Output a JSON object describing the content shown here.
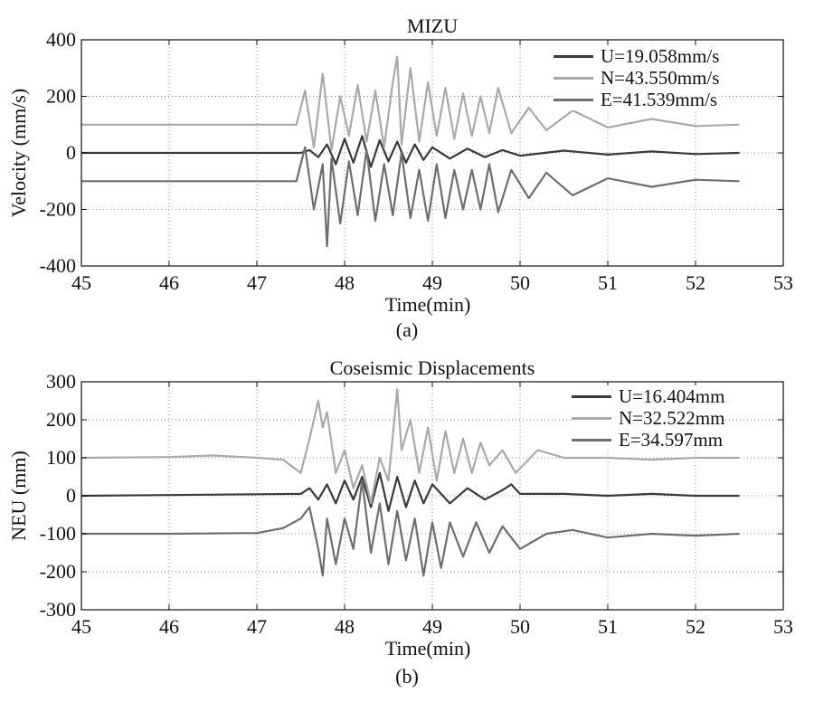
{
  "panels": [
    {
      "caption": "(a)",
      "legend": [
        {
          "label": "U=19.058mm/s",
          "color": "#3a3a3a"
        },
        {
          "label": "N=43.550mm/s",
          "color": "#a9a9a9"
        },
        {
          "label": "E=41.539mm/s",
          "color": "#6e6e6e"
        }
      ]
    },
    {
      "caption": "(b)",
      "legend": [
        {
          "label": "U=16.404mm",
          "color": "#3a3a3a"
        },
        {
          "label": "N=32.522mm",
          "color": "#a9a9a9"
        },
        {
          "label": "E=34.597mm",
          "color": "#6e6e6e"
        }
      ]
    }
  ],
  "chart_data": [
    {
      "type": "line",
      "title": "MIZU",
      "xlabel": "Time(min)",
      "ylabel": "Velocity (mm/s)",
      "xlim": [
        45,
        53
      ],
      "ylim": [
        -400,
        400
      ],
      "xticks": [
        45,
        46,
        47,
        48,
        49,
        50,
        51,
        52,
        53
      ],
      "yticks": [
        -400,
        -200,
        0,
        200,
        400
      ],
      "grid": true,
      "legend_position": "top-right",
      "series": [
        {
          "name": "U=19.058mm/s",
          "color": "#3a3a3a",
          "x": [
            45.0,
            47.5,
            47.6,
            47.7,
            47.8,
            47.9,
            48.0,
            48.1,
            48.2,
            48.3,
            48.4,
            48.5,
            48.6,
            48.7,
            48.8,
            48.9,
            49.0,
            49.2,
            49.4,
            49.6,
            49.8,
            50.0,
            50.5,
            51.0,
            51.5,
            52.0,
            52.5
          ],
          "y": [
            0,
            0,
            10,
            -15,
            30,
            -40,
            50,
            -35,
            60,
            -50,
            45,
            -30,
            40,
            -35,
            30,
            -25,
            20,
            -20,
            15,
            -15,
            10,
            -10,
            8,
            -6,
            5,
            -4,
            0
          ]
        },
        {
          "name": "N=43.550mm/s",
          "color": "#a9a9a9",
          "x": [
            45.0,
            47.45,
            47.55,
            47.65,
            47.75,
            47.85,
            47.95,
            48.05,
            48.15,
            48.25,
            48.35,
            48.45,
            48.55,
            48.6,
            48.65,
            48.75,
            48.85,
            48.95,
            49.05,
            49.15,
            49.25,
            49.35,
            49.45,
            49.55,
            49.65,
            49.75,
            49.9,
            50.1,
            50.3,
            50.6,
            51.0,
            51.5,
            52.0,
            52.5
          ],
          "y": [
            100,
            100,
            220,
            20,
            280,
            10,
            200,
            60,
            240,
            40,
            220,
            20,
            250,
            340,
            30,
            300,
            40,
            250,
            60,
            230,
            50,
            210,
            60,
            200,
            70,
            230,
            70,
            160,
            80,
            150,
            90,
            120,
            95,
            100
          ]
        },
        {
          "name": "E=41.539mm/s",
          "color": "#6e6e6e",
          "x": [
            45.0,
            47.45,
            47.55,
            47.65,
            47.75,
            47.8,
            47.85,
            47.95,
            48.05,
            48.15,
            48.25,
            48.35,
            48.45,
            48.55,
            48.65,
            48.75,
            48.85,
            48.95,
            49.05,
            49.15,
            49.25,
            49.35,
            49.45,
            49.55,
            49.65,
            49.75,
            49.9,
            50.1,
            50.3,
            50.6,
            51.0,
            51.5,
            52.0,
            52.5
          ],
          "y": [
            -100,
            -100,
            20,
            -200,
            -40,
            -330,
            -20,
            -250,
            -30,
            -220,
            10,
            -240,
            -40,
            -220,
            0,
            -230,
            -60,
            -240,
            -40,
            -230,
            -60,
            -200,
            -60,
            -200,
            -40,
            -210,
            -60,
            -160,
            -70,
            -150,
            -90,
            -120,
            -95,
            -100
          ]
        }
      ]
    },
    {
      "type": "line",
      "title": "Coseismic Displacements",
      "xlabel": "Time(min)",
      "ylabel": "NEU (mm)",
      "xlim": [
        45,
        53
      ],
      "ylim": [
        -300,
        300
      ],
      "xticks": [
        45,
        46,
        47,
        48,
        49,
        50,
        51,
        52,
        53
      ],
      "yticks": [
        -300,
        -200,
        -100,
        0,
        100,
        200,
        300
      ],
      "grid": true,
      "legend_position": "top-right",
      "series": [
        {
          "name": "U=16.404mm",
          "color": "#3a3a3a",
          "x": [
            45.0,
            46.0,
            47.0,
            47.5,
            47.6,
            47.7,
            47.8,
            47.9,
            48.0,
            48.1,
            48.2,
            48.3,
            48.4,
            48.5,
            48.6,
            48.7,
            48.8,
            48.9,
            49.0,
            49.2,
            49.4,
            49.6,
            49.8,
            49.9,
            50.0,
            50.5,
            51.0,
            51.5,
            52.0,
            52.5
          ],
          "y": [
            0,
            2,
            4,
            5,
            20,
            -10,
            30,
            -20,
            40,
            -10,
            50,
            -30,
            60,
            -40,
            50,
            -30,
            40,
            -20,
            30,
            -20,
            20,
            -10,
            15,
            30,
            5,
            5,
            0,
            5,
            0,
            0
          ]
        },
        {
          "name": "N=32.522mm",
          "color": "#a9a9a9",
          "x": [
            45.0,
            46.0,
            46.5,
            47.0,
            47.3,
            47.5,
            47.6,
            47.7,
            47.75,
            47.8,
            47.9,
            48.0,
            48.1,
            48.2,
            48.3,
            48.4,
            48.5,
            48.6,
            48.65,
            48.75,
            48.85,
            48.95,
            49.05,
            49.15,
            49.25,
            49.35,
            49.45,
            49.55,
            49.65,
            49.8,
            49.95,
            50.2,
            50.5,
            51.0,
            51.5,
            52.0,
            52.5
          ],
          "y": [
            100,
            102,
            106,
            100,
            95,
            60,
            150,
            250,
            180,
            220,
            60,
            120,
            20,
            80,
            -20,
            100,
            40,
            280,
            120,
            200,
            60,
            180,
            40,
            170,
            60,
            150,
            60,
            140,
            80,
            120,
            60,
            120,
            100,
            100,
            95,
            100,
            100
          ]
        },
        {
          "name": "E=34.597mm",
          "color": "#6e6e6e",
          "x": [
            45.0,
            46.0,
            47.0,
            47.3,
            47.5,
            47.6,
            47.7,
            47.75,
            47.8,
            47.9,
            48.0,
            48.1,
            48.2,
            48.3,
            48.4,
            48.5,
            48.6,
            48.7,
            48.8,
            48.9,
            49.0,
            49.1,
            49.2,
            49.35,
            49.5,
            49.65,
            49.8,
            50.0,
            50.3,
            50.6,
            51.0,
            51.5,
            52.0,
            52.5
          ],
          "y": [
            -100,
            -100,
            -98,
            -85,
            -60,
            -30,
            -140,
            -210,
            -60,
            -180,
            -60,
            -140,
            40,
            -150,
            -20,
            -180,
            -40,
            -170,
            -60,
            -210,
            -70,
            -190,
            -70,
            -160,
            -70,
            -150,
            -80,
            -140,
            -100,
            -90,
            -110,
            -100,
            -105,
            -100
          ]
        }
      ]
    }
  ]
}
